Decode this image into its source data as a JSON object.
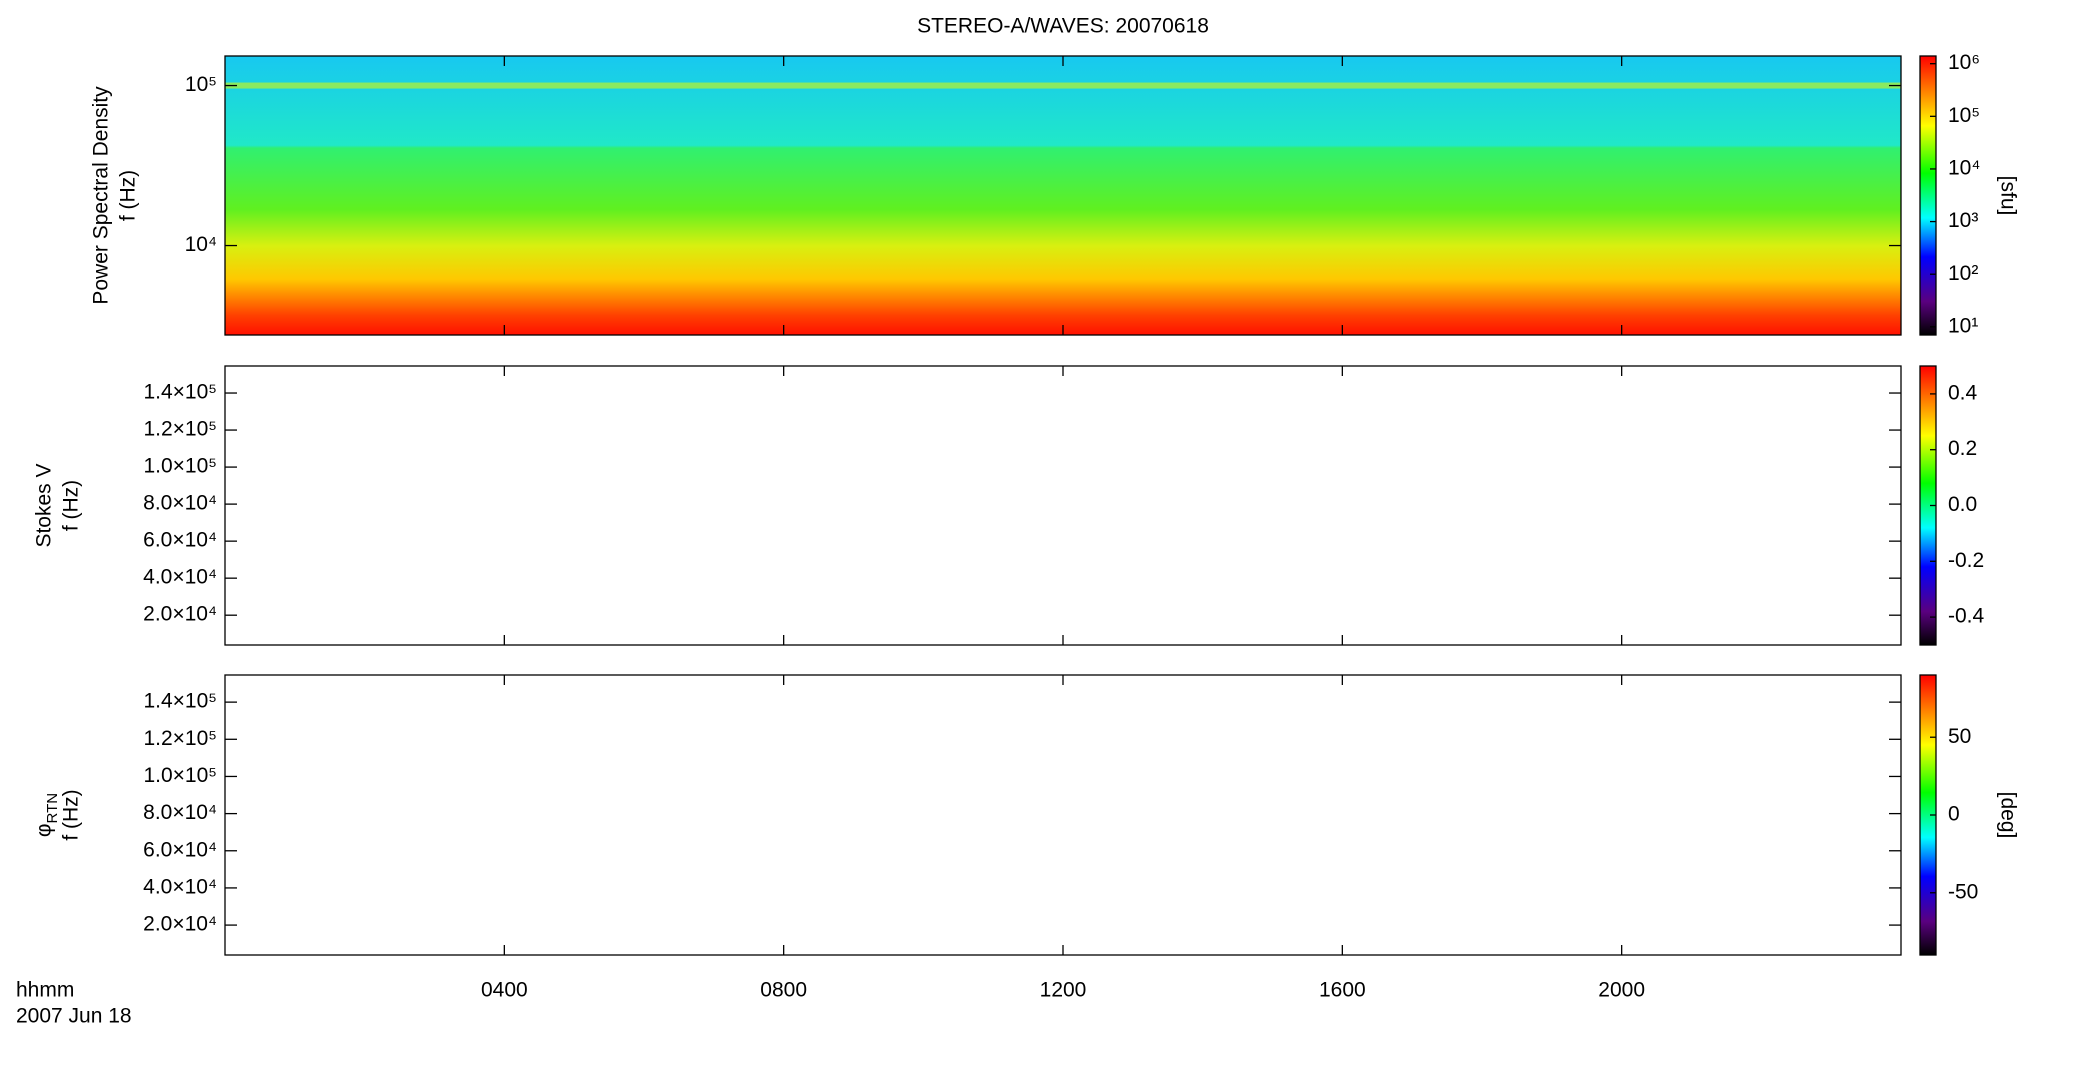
{
  "title": "STEREO-A/WAVES: 20070618",
  "time_axis": {
    "xlim": [
      0,
      24
    ],
    "xticks": [
      {
        "value": 4,
        "label": "0400"
      },
      {
        "value": 8,
        "label": "0800"
      },
      {
        "value": 12,
        "label": "1200"
      },
      {
        "value": 16,
        "label": "1600"
      },
      {
        "value": 20,
        "label": "2000"
      }
    ],
    "label": "hhmm",
    "date": "2007 Jun 18"
  },
  "chart_data": [
    {
      "type": "spectrogram",
      "ylabel": [
        "Power Spectral Density",
        "f (Hz)"
      ],
      "ylog": true,
      "ylim": [
        2760,
        153000
      ],
      "yticks": [
        {
          "value": 10000,
          "label": "10⁴"
        },
        {
          "value": 100000,
          "label": "10⁵"
        }
      ],
      "colorbar": {
        "log": true,
        "lim": [
          7,
          1400000
        ],
        "label": "[sfu]",
        "ticks": [
          {
            "value": 10,
            "label": "10¹"
          },
          {
            "value": 100,
            "label": "10²"
          },
          {
            "value": 1000,
            "label": "10³"
          },
          {
            "value": 10000,
            "label": "10⁴"
          },
          {
            "value": 100000,
            "label": "10⁵"
          },
          {
            "value": 1000000,
            "label": "10⁶"
          }
        ]
      }
    },
    {
      "type": "empty",
      "ylabel": [
        "Stokes V",
        "f (Hz)"
      ],
      "ylog": false,
      "ylim": [
        3900,
        154600
      ],
      "yticks": [
        {
          "value": 20000,
          "label": "2.0×10⁴"
        },
        {
          "value": 40000,
          "label": "4.0×10⁴"
        },
        {
          "value": 60000,
          "label": "6.0×10⁴"
        },
        {
          "value": 80000,
          "label": "8.0×10⁴"
        },
        {
          "value": 100000,
          "label": "1.0×10⁵"
        },
        {
          "value": 120000,
          "label": "1.2×10⁵"
        },
        {
          "value": 140000,
          "label": "1.4×10⁵"
        }
      ],
      "colorbar": {
        "log": false,
        "lim": [
          -0.5,
          0.5
        ],
        "ticks": [
          -0.4,
          -0.2,
          {
            "value": 0,
            "label": "0.0"
          },
          0.2,
          0.4
        ]
      }
    },
    {
      "type": "empty",
      "ylabel": [
        "φ",
        "f (Hz)"
      ],
      "ylabel_sub": "RTN",
      "ylog": false,
      "ylim": [
        3900,
        154600
      ],
      "yticks": [
        {
          "value": 20000,
          "label": "2.0×10⁴"
        },
        {
          "value": 40000,
          "label": "4.0×10⁴"
        },
        {
          "value": 60000,
          "label": "6.0×10⁴"
        },
        {
          "value": 80000,
          "label": "8.0×10⁴"
        },
        {
          "value": 100000,
          "label": "1.0×10⁵"
        },
        {
          "value": 120000,
          "label": "1.2×10⁵"
        },
        {
          "value": 140000,
          "label": "1.4×10⁵"
        }
      ],
      "colorbar": {
        "log": false,
        "lim": [
          -90,
          90
        ],
        "label": "[deg]",
        "ticks": [
          -50,
          0,
          50
        ]
      }
    }
  ]
}
